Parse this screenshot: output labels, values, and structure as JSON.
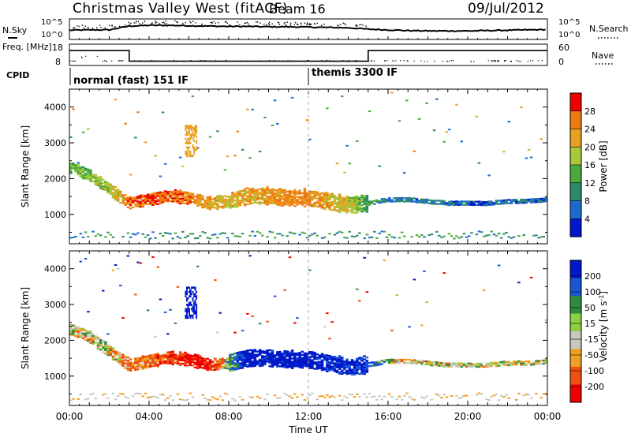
{
  "header": {
    "title": "Christmas Valley West (fitACF)",
    "beam": "Beam 16",
    "date": "09/Jul/2012"
  },
  "colors": {
    "noise_line": "#000000",
    "scale_top": "#0018c8",
    "scale_bottom": "#ee0000"
  },
  "chart_data": [
    {
      "type": "line",
      "title": "",
      "ylabel": "N.Sky",
      "right_label": "N.Search",
      "yticks_left": [
        "10^5",
        "10^0"
      ],
      "yticks_right": [
        "10^5",
        "10^0"
      ],
      "x": [
        "00:00",
        "01:00",
        "02:00",
        "03:00",
        "04:00",
        "05:00",
        "06:00",
        "07:00",
        "08:00",
        "09:00",
        "10:00",
        "11:00",
        "12:00",
        "13:00",
        "14:00",
        "15:00",
        "16:00",
        "17:00",
        "18:00",
        "19:00",
        "20:00",
        "21:00",
        "22:00",
        "23:00",
        "24:00"
      ],
      "series": [
        {
          "values": [
            2.2,
            2.3,
            2.3,
            3.4,
            3.6,
            3.6,
            3.5,
            3.4,
            3.3,
            3.3,
            3.2,
            3.2,
            3.1,
            3.0,
            2.9,
            2.5,
            2.3,
            2.1,
            2.0,
            2.0,
            2.0,
            2.1,
            2.2,
            2.3,
            2.4
          ]
        }
      ]
    },
    {
      "type": "line",
      "title": "",
      "ylabel": "Freq. [MHz]",
      "right_label": "Nave",
      "yticks_left": [
        "18",
        "8"
      ],
      "yticks_right": [
        "60",
        "0"
      ],
      "x": [
        "00:00",
        "03:00",
        "15:00",
        "17:20",
        "24:00"
      ],
      "series": [
        {
          "values": [
            15,
            10,
            15,
            15,
            15
          ]
        }
      ]
    },
    {
      "type": "table",
      "title": "CPID",
      "rows": [
        {
          "label": "normal (fast) 151 IF",
          "start": "00:00",
          "end": "12:00"
        },
        {
          "label": "themis 3300 IF",
          "start": "12:00",
          "end": "24:00"
        }
      ]
    },
    {
      "type": "heatmap",
      "title": "",
      "xlabel": "",
      "ylabel": "Slant Range [km]",
      "ylim": [
        180,
        4500
      ],
      "yticks": [
        "1000",
        "2000",
        "3000",
        "4000"
      ],
      "colorbar": {
        "label": "Power [dB]",
        "ticks": [
          "4",
          "8",
          "12",
          "16",
          "20",
          "24",
          "28"
        ],
        "colors": [
          "#0018c8",
          "#1e6bd0",
          "#2c8a6a",
          "#4aaa3c",
          "#a8c83a",
          "#e8a020",
          "#f07a10",
          "#ee0000"
        ]
      },
      "x": [
        "00:00",
        "01:00",
        "02:00",
        "03:00",
        "04:00",
        "05:00",
        "06:00",
        "07:00",
        "08:00",
        "09:00",
        "10:00",
        "11:00",
        "12:00",
        "13:00",
        "14:00",
        "15:00",
        "16:00",
        "17:00",
        "18:00",
        "19:00",
        "20:00",
        "21:00",
        "22:00",
        "23:00",
        "24:00"
      ],
      "series": [
        {
          "name": "main echo range (km)",
          "values": [
            2300,
            2100,
            1700,
            1300,
            1400,
            1500,
            1450,
            1300,
            1350,
            1500,
            1500,
            1450,
            1450,
            1350,
            1250,
            1300,
            1400,
            1400,
            1350,
            1300,
            1300,
            1300,
            1350,
            1350,
            1400
          ]
        },
        {
          "name": "main echo power (dB)",
          "values": [
            14,
            16,
            18,
            26,
            27,
            27,
            25,
            22,
            20,
            22,
            23,
            24,
            24,
            22,
            20,
            12,
            8,
            8,
            7,
            7,
            6,
            6,
            6,
            6,
            5
          ]
        }
      ]
    },
    {
      "type": "heatmap",
      "title": "",
      "xlabel": "Time UT",
      "ylabel": "Slant Range [km]",
      "ylim": [
        180,
        4500
      ],
      "yticks": [
        "1000",
        "2000",
        "3000",
        "4000"
      ],
      "xticks": [
        "00:00",
        "04:00",
        "08:00",
        "12:00",
        "16:00",
        "20:00",
        "00:00"
      ],
      "colorbar": {
        "label": "Velocity [m s",
        "label_sup": "-1",
        "label_end": "]",
        "ticks": [
          "200",
          "100",
          "50",
          "15",
          "-15",
          "-50",
          "-100",
          "-200"
        ],
        "colors": [
          "#0018c8",
          "#1a55d8",
          "#2e8a3c",
          "#8ad040",
          "#c8c8c0",
          "#f0a020",
          "#ee5010",
          "#ee0000"
        ]
      },
      "x": [
        "00:00",
        "01:00",
        "02:00",
        "03:00",
        "04:00",
        "05:00",
        "06:00",
        "07:00",
        "08:00",
        "09:00",
        "10:00",
        "11:00",
        "12:00",
        "13:00",
        "14:00",
        "15:00",
        "16:00",
        "17:00",
        "18:00",
        "19:00",
        "20:00",
        "21:00",
        "22:00",
        "23:00",
        "24:00"
      ],
      "series": [
        {
          "name": "main echo range (km)",
          "values": [
            2300,
            2100,
            1700,
            1300,
            1400,
            1500,
            1450,
            1300,
            1350,
            1500,
            1500,
            1450,
            1450,
            1350,
            1250,
            1300,
            1400,
            1400,
            1350,
            1300,
            1300,
            1300,
            1350,
            1350,
            1400
          ]
        },
        {
          "name": "main echo velocity (m/s)",
          "values": [
            0,
            0,
            0,
            -60,
            -60,
            -100,
            -150,
            -150,
            40,
            200,
            200,
            200,
            200,
            180,
            180,
            150,
            0,
            0,
            0,
            0,
            0,
            0,
            0,
            0,
            0
          ]
        }
      ]
    }
  ]
}
